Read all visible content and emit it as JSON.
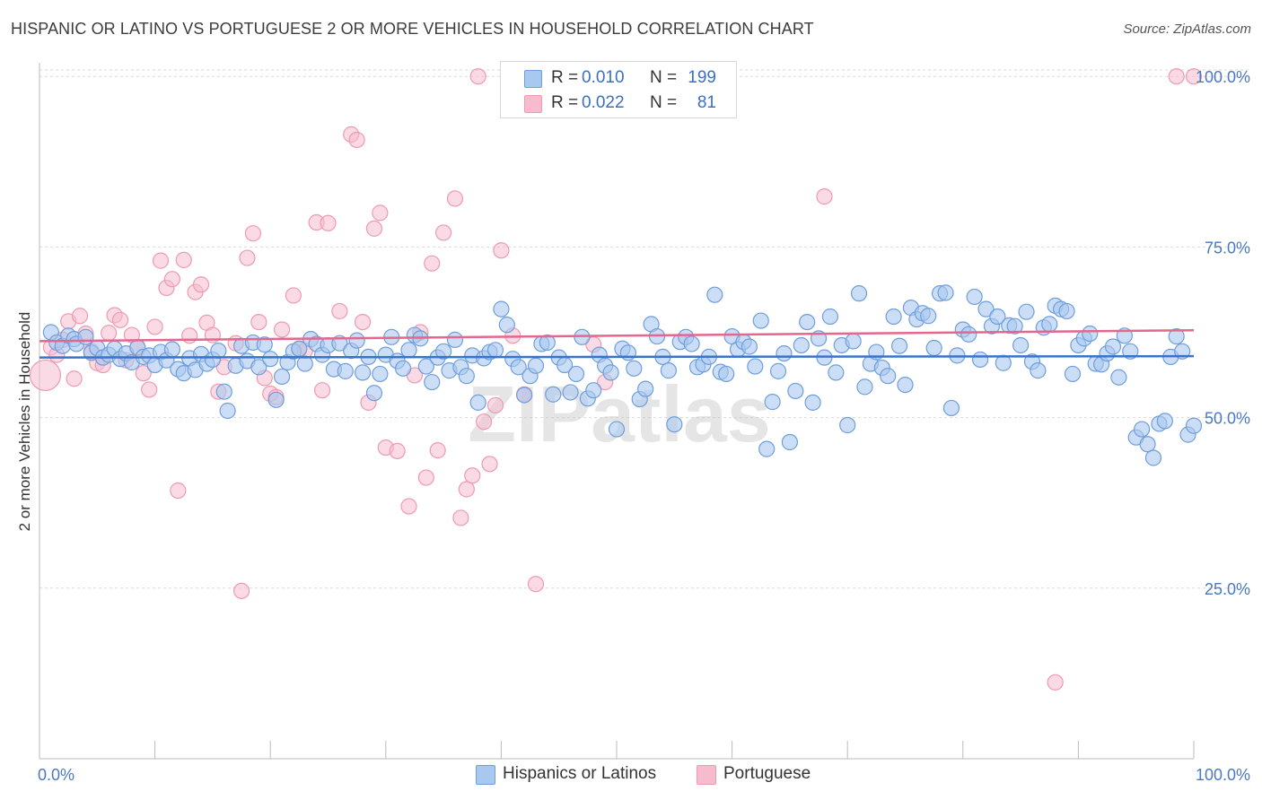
{
  "header": {
    "title": "HISPANIC OR LATINO VS PORTUGUESE 2 OR MORE VEHICLES IN HOUSEHOLD CORRELATION CHART",
    "source": "Source: ZipAtlas.com"
  },
  "watermark": "ZIPatlas",
  "legend_top": {
    "rows": [
      {
        "r_label": "R =",
        "r_value": "0.010",
        "n_label": "N =",
        "n_value": "199"
      },
      {
        "r_label": "R =",
        "r_value": "0.022",
        "n_label": "N =",
        "n_value": "81"
      }
    ]
  },
  "legend_bottom": {
    "items": [
      {
        "label": "Hispanics or Latinos"
      },
      {
        "label": "Portuguese"
      }
    ]
  },
  "colors": {
    "blue_fill": "#a8c8ef",
    "blue_stroke": "#6f9edc",
    "blue_line": "#3a74c9",
    "pink_fill": "#f6bccd",
    "pink_stroke": "#ee9ab2",
    "pink_line": "#e4678f",
    "grid": "#d9d9d9",
    "tick_text": "#4a78c4"
  },
  "chart_data": {
    "type": "scatter",
    "title": "HISPANIC OR LATINO VS PORTUGUESE 2 OR MORE VEHICLES IN HOUSEHOLD CORRELATION CHART",
    "xlabel": "",
    "ylabel": "2 or more Vehicles in Household",
    "xlim": [
      0,
      100
    ],
    "ylim": [
      0,
      102
    ],
    "x_tick_labels": [
      "0.0%",
      "100.0%"
    ],
    "y_ticks": [
      25,
      50,
      75,
      100
    ],
    "y_tick_labels": [
      "25.0%",
      "50.0%",
      "75.0%",
      "100.0%"
    ],
    "grid": true,
    "series": [
      {
        "name": "Hispanics or Latinos",
        "r": 0.01,
        "n": 199,
        "trend": {
          "x": [
            0,
            100
          ],
          "y": [
            58.8,
            59.0
          ]
        },
        "points": [
          [
            1,
            62.5
          ],
          [
            1.5,
            61
          ],
          [
            2,
            60.5
          ],
          [
            2.5,
            62
          ],
          [
            3,
            61.5
          ],
          [
            3.2,
            60.8
          ],
          [
            4,
            61.8
          ],
          [
            4.5,
            59.5
          ],
          [
            5,
            60.2
          ],
          [
            5.5,
            58.8
          ],
          [
            6,
            59.2
          ],
          [
            6.5,
            60.1
          ],
          [
            7,
            58.6
          ],
          [
            7.5,
            59.4
          ],
          [
            8,
            58.1
          ],
          [
            8.5,
            60.3
          ],
          [
            9,
            58.9
          ],
          [
            9.5,
            59.1
          ],
          [
            10,
            57.7
          ],
          [
            10.5,
            59.6
          ],
          [
            11,
            58.4
          ],
          [
            11.5,
            60.0
          ],
          [
            12,
            57.1
          ],
          [
            12.5,
            56.5
          ],
          [
            13,
            58.7
          ],
          [
            13.5,
            57.0
          ],
          [
            14,
            59.3
          ],
          [
            14.5,
            57.9
          ],
          [
            15,
            58.5
          ],
          [
            15.5,
            59.8
          ],
          [
            16,
            53.8
          ],
          [
            16.3,
            51.0
          ],
          [
            17,
            57.6
          ],
          [
            17.5,
            60.5
          ],
          [
            18,
            58.3
          ],
          [
            18.5,
            61.0
          ],
          [
            19,
            57.4
          ],
          [
            19.5,
            60.7
          ],
          [
            20,
            58.6
          ],
          [
            20.5,
            52.6
          ],
          [
            21,
            56.0
          ],
          [
            21.5,
            58.1
          ],
          [
            22,
            59.7
          ],
          [
            22.5,
            60.1
          ],
          [
            23,
            57.9
          ],
          [
            23.5,
            61.5
          ],
          [
            24,
            60.8
          ],
          [
            24.5,
            59.2
          ],
          [
            25,
            60.6
          ],
          [
            25.5,
            57.1
          ],
          [
            26,
            60.9
          ],
          [
            26.5,
            56.8
          ],
          [
            27,
            59.8
          ],
          [
            27.5,
            61.3
          ],
          [
            28,
            56.6
          ],
          [
            28.5,
            58.9
          ],
          [
            29,
            53.6
          ],
          [
            29.5,
            56.4
          ],
          [
            30,
            59.2
          ],
          [
            30.5,
            61.8
          ],
          [
            31,
            58.3
          ],
          [
            31.5,
            57.2
          ],
          [
            32,
            59.9
          ],
          [
            32.5,
            62.1
          ],
          [
            33,
            61.6
          ],
          [
            33.5,
            57.5
          ],
          [
            34,
            55.2
          ],
          [
            34.5,
            58.8
          ],
          [
            35,
            59.7
          ],
          [
            35.5,
            56.9
          ],
          [
            36,
            61.4
          ],
          [
            36.5,
            57.4
          ],
          [
            37,
            56.1
          ],
          [
            37.5,
            59.1
          ],
          [
            38,
            52.2
          ],
          [
            38.5,
            58.7
          ],
          [
            39,
            59.6
          ],
          [
            39.5,
            59.9
          ],
          [
            40,
            65.9
          ],
          [
            40.5,
            63.6
          ],
          [
            41,
            58.6
          ],
          [
            41.5,
            57.4
          ],
          [
            42,
            53.3
          ],
          [
            42.5,
            56.1
          ],
          [
            43,
            57.6
          ],
          [
            43.5,
            60.8
          ],
          [
            44,
            61.0
          ],
          [
            44.5,
            53.4
          ],
          [
            45,
            58.8
          ],
          [
            45.5,
            57.7
          ],
          [
            46,
            53.7
          ],
          [
            46.5,
            56.4
          ],
          [
            47,
            61.8
          ],
          [
            47.5,
            52.8
          ],
          [
            48,
            54.0
          ],
          [
            48.5,
            59.2
          ],
          [
            49,
            57.6
          ],
          [
            49.5,
            56.6
          ],
          [
            50,
            48.3
          ],
          [
            50.5,
            60.1
          ],
          [
            51,
            59.5
          ],
          [
            51.5,
            57.2
          ],
          [
            52,
            52.7
          ],
          [
            52.5,
            54.2
          ],
          [
            53,
            63.7
          ],
          [
            53.5,
            61.9
          ],
          [
            54,
            58.9
          ],
          [
            54.5,
            56.9
          ],
          [
            55,
            49.0
          ],
          [
            55.5,
            61.1
          ],
          [
            56,
            61.8
          ],
          [
            56.5,
            60.8
          ],
          [
            57,
            57.4
          ],
          [
            57.5,
            57.8
          ],
          [
            58,
            58.9
          ],
          [
            58.5,
            68.0
          ],
          [
            59,
            56.7
          ],
          [
            59.5,
            56.4
          ],
          [
            60,
            61.9
          ],
          [
            60.5,
            60.0
          ],
          [
            61,
            61.1
          ],
          [
            61.5,
            60.4
          ],
          [
            62,
            57.5
          ],
          [
            62.5,
            64.2
          ],
          [
            63,
            45.4
          ],
          [
            63.5,
            52.3
          ],
          [
            64,
            56.8
          ],
          [
            64.5,
            59.4
          ],
          [
            65,
            46.4
          ],
          [
            65.5,
            53.9
          ],
          [
            66,
            60.6
          ],
          [
            66.5,
            64.0
          ],
          [
            67,
            52.2
          ],
          [
            67.5,
            61.6
          ],
          [
            68,
            58.8
          ],
          [
            68.5,
            64.8
          ],
          [
            69,
            56.6
          ],
          [
            69.5,
            60.6
          ],
          [
            70,
            48.9
          ],
          [
            70.5,
            61.2
          ],
          [
            71,
            68.2
          ],
          [
            71.5,
            54.5
          ],
          [
            72,
            57.9
          ],
          [
            72.5,
            59.6
          ],
          [
            73,
            57.3
          ],
          [
            73.5,
            56.1
          ],
          [
            74,
            64.8
          ],
          [
            74.5,
            60.5
          ],
          [
            75,
            54.8
          ],
          [
            75.5,
            66.1
          ],
          [
            76,
            64.4
          ],
          [
            76.5,
            65.3
          ],
          [
            77,
            64.9
          ],
          [
            77.5,
            60.2
          ],
          [
            78,
            68.2
          ],
          [
            78.5,
            68.3
          ],
          [
            79,
            51.4
          ],
          [
            79.5,
            59.1
          ],
          [
            80,
            62.9
          ],
          [
            80.5,
            62.2
          ],
          [
            81,
            67.7
          ],
          [
            81.5,
            58.5
          ],
          [
            82,
            65.9
          ],
          [
            82.5,
            63.4
          ],
          [
            83,
            64.8
          ],
          [
            83.5,
            58.0
          ],
          [
            84,
            63.5
          ],
          [
            84.5,
            63.4
          ],
          [
            85,
            60.6
          ],
          [
            85.5,
            65.5
          ],
          [
            86,
            58.2
          ],
          [
            86.5,
            56.9
          ],
          [
            87,
            63.2
          ],
          [
            87.5,
            63.7
          ],
          [
            88,
            66.4
          ],
          [
            88.5,
            65.9
          ],
          [
            89,
            65.6
          ],
          [
            89.5,
            56.4
          ],
          [
            90,
            60.6
          ],
          [
            90.5,
            61.6
          ],
          [
            91,
            62.3
          ],
          [
            91.5,
            57.9
          ],
          [
            92,
            57.8
          ],
          [
            92.5,
            59.4
          ],
          [
            93,
            60.4
          ],
          [
            93.5,
            55.9
          ],
          [
            94,
            62.0
          ],
          [
            94.5,
            59.7
          ],
          [
            95,
            47.1
          ],
          [
            95.5,
            48.3
          ],
          [
            96,
            46.1
          ],
          [
            96.5,
            44.1
          ],
          [
            97,
            49.1
          ],
          [
            97.5,
            49.5
          ],
          [
            98,
            58.9
          ],
          [
            98.5,
            61.9
          ],
          [
            99,
            59.7
          ],
          [
            99.5,
            47.5
          ],
          [
            100,
            48.8
          ]
        ]
      },
      {
        "name": "Portuguese",
        "r": 0.022,
        "n": 81,
        "trend": {
          "x": [
            0,
            100
          ],
          "y": [
            61.2,
            62.8
          ]
        },
        "points": [
          [
            0.5,
            56.2
          ],
          [
            1,
            60.3
          ],
          [
            1.5,
            59.2
          ],
          [
            2,
            61.4
          ],
          [
            2.5,
            64.1
          ],
          [
            3,
            55.7
          ],
          [
            3.5,
            64.9
          ],
          [
            4,
            62.3
          ],
          [
            4.5,
            59.7
          ],
          [
            5,
            58.0
          ],
          [
            5.5,
            57.7
          ],
          [
            6,
            62.4
          ],
          [
            6.5,
            65.0
          ],
          [
            7,
            64.3
          ],
          [
            7.5,
            58.4
          ],
          [
            8,
            62.1
          ],
          [
            8.5,
            60.2
          ],
          [
            9,
            56.5
          ],
          [
            9.5,
            54.1
          ],
          [
            10,
            63.3
          ],
          [
            10.5,
            73.0
          ],
          [
            11,
            69.0
          ],
          [
            11.5,
            70.3
          ],
          [
            12,
            39.3
          ],
          [
            12.5,
            73.1
          ],
          [
            13,
            62.0
          ],
          [
            13.5,
            68.4
          ],
          [
            14,
            69.5
          ],
          [
            14.5,
            63.9
          ],
          [
            15,
            62.1
          ],
          [
            15.5,
            53.8
          ],
          [
            16,
            57.4
          ],
          [
            17,
            60.9
          ],
          [
            17.5,
            24.6
          ],
          [
            18,
            73.4
          ],
          [
            18.5,
            77.0
          ],
          [
            19,
            64.0
          ],
          [
            19.5,
            55.8
          ],
          [
            20,
            53.5
          ],
          [
            20.5,
            53.0
          ],
          [
            21,
            62.9
          ],
          [
            22,
            67.9
          ],
          [
            22.5,
            60.0
          ],
          [
            23,
            59.8
          ],
          [
            24,
            78.6
          ],
          [
            24.5,
            54.0
          ],
          [
            25,
            78.5
          ],
          [
            26,
            65.6
          ],
          [
            27,
            91.5
          ],
          [
            27.5,
            90.7
          ],
          [
            28,
            64.0
          ],
          [
            28.5,
            52.2
          ],
          [
            29,
            77.7
          ],
          [
            29.5,
            80.0
          ],
          [
            30,
            45.6
          ],
          [
            31,
            45.1
          ],
          [
            32,
            37.0
          ],
          [
            32.5,
            56.2
          ],
          [
            33,
            62.5
          ],
          [
            33.5,
            41.2
          ],
          [
            34,
            72.6
          ],
          [
            34.5,
            45.2
          ],
          [
            35,
            77.1
          ],
          [
            36,
            82.1
          ],
          [
            36.5,
            35.3
          ],
          [
            37,
            39.5
          ],
          [
            37.5,
            41.5
          ],
          [
            38,
            100.0
          ],
          [
            38.5,
            49.4
          ],
          [
            39,
            43.2
          ],
          [
            39.5,
            51.8
          ],
          [
            40,
            74.5
          ],
          [
            41,
            62.0
          ],
          [
            42,
            53.4
          ],
          [
            43,
            25.6
          ],
          [
            48,
            60.7
          ],
          [
            49,
            55.2
          ],
          [
            68,
            82.4
          ],
          [
            88,
            11.2
          ],
          [
            100,
            100.0
          ],
          [
            98.5,
            100.0
          ]
        ]
      }
    ]
  }
}
